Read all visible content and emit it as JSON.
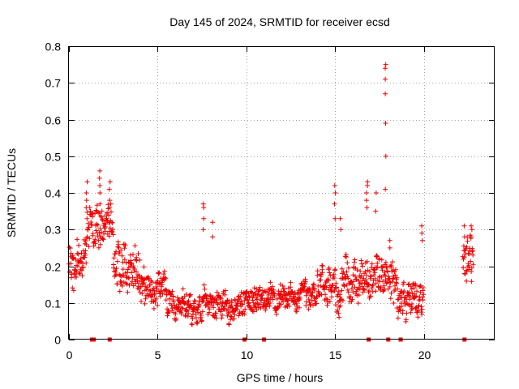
{
  "chart_data": {
    "type": "scatter",
    "title": "Day 145 of 2024, SRMTID for receiver ecsd",
    "xlabel": "GPS time / hours",
    "ylabel": "SRMTID / TECUs",
    "xlim": [
      0,
      24
    ],
    "ylim": [
      0,
      0.8
    ],
    "xticks": [
      0,
      5,
      10,
      15,
      20
    ],
    "xtick_labels": [
      "0",
      "5",
      "10",
      "15",
      "20"
    ],
    "yticks": [
      0,
      0.1,
      0.2,
      0.3,
      0.4,
      0.5,
      0.6,
      0.7,
      0.8
    ],
    "ytick_labels": [
      "0",
      "0.1",
      "0.2",
      "0.3",
      "0.4",
      "0.5",
      "0.6",
      "0.7",
      "0.8"
    ],
    "grid": true,
    "marker": "plus",
    "color": "#ee0000",
    "segments": [
      {
        "x0": 0.0,
        "x1": 1.0,
        "y": 0.22,
        "spread": 0.06
      },
      {
        "x0": 1.0,
        "x1": 2.5,
        "y": 0.3,
        "spread": 0.07
      },
      {
        "x0": 2.5,
        "x1": 4.0,
        "y": 0.19,
        "spread": 0.07
      },
      {
        "x0": 4.0,
        "x1": 5.5,
        "y": 0.13,
        "spread": 0.05
      },
      {
        "x0": 5.5,
        "x1": 7.5,
        "y": 0.09,
        "spread": 0.04
      },
      {
        "x0": 7.5,
        "x1": 10.0,
        "y": 0.1,
        "spread": 0.04
      },
      {
        "x0": 10.0,
        "x1": 14.0,
        "y": 0.11,
        "spread": 0.04
      },
      {
        "x0": 14.0,
        "x1": 16.0,
        "y": 0.15,
        "spread": 0.06
      },
      {
        "x0": 16.0,
        "x1": 18.5,
        "y": 0.16,
        "spread": 0.06
      },
      {
        "x0": 18.5,
        "x1": 20.0,
        "y": 0.11,
        "spread": 0.05
      },
      {
        "x0": 22.2,
        "x1": 22.8,
        "y": 0.22,
        "spread": 0.07
      }
    ],
    "spikes": [
      {
        "x": 1.0,
        "values": [
          0.36,
          0.4,
          0.43,
          0.38,
          0.33
        ]
      },
      {
        "x": 1.75,
        "values": [
          0.4,
          0.44,
          0.46,
          0.42,
          0.37
        ]
      },
      {
        "x": 2.3,
        "values": [
          0.38,
          0.41,
          0.43,
          0.36
        ]
      },
      {
        "x": 7.6,
        "values": [
          0.3,
          0.33,
          0.36,
          0.37
        ]
      },
      {
        "x": 8.1,
        "values": [
          0.28,
          0.32
        ]
      },
      {
        "x": 15.0,
        "values": [
          0.33,
          0.37,
          0.4,
          0.42
        ]
      },
      {
        "x": 15.3,
        "values": [
          0.3,
          0.33
        ]
      },
      {
        "x": 16.8,
        "values": [
          0.36,
          0.4,
          0.43,
          0.42,
          0.38
        ]
      },
      {
        "x": 17.3,
        "values": [
          0.35,
          0.4
        ]
      },
      {
        "x": 17.85,
        "values": [
          0.41,
          0.5,
          0.59,
          0.67,
          0.71,
          0.74,
          0.75
        ]
      },
      {
        "x": 18.1,
        "values": [
          0.27,
          0.25
        ]
      },
      {
        "x": 19.9,
        "values": [
          0.27,
          0.29,
          0.31
        ]
      },
      {
        "x": 22.3,
        "values": [
          0.28,
          0.31
        ]
      },
      {
        "x": 22.7,
        "values": [
          0.28,
          0.3,
          0.31
        ]
      }
    ],
    "zero_markers": [
      1.3,
      1.4,
      2.3,
      9.9,
      11.0,
      16.9,
      18.0,
      18.7,
      22.3
    ]
  }
}
